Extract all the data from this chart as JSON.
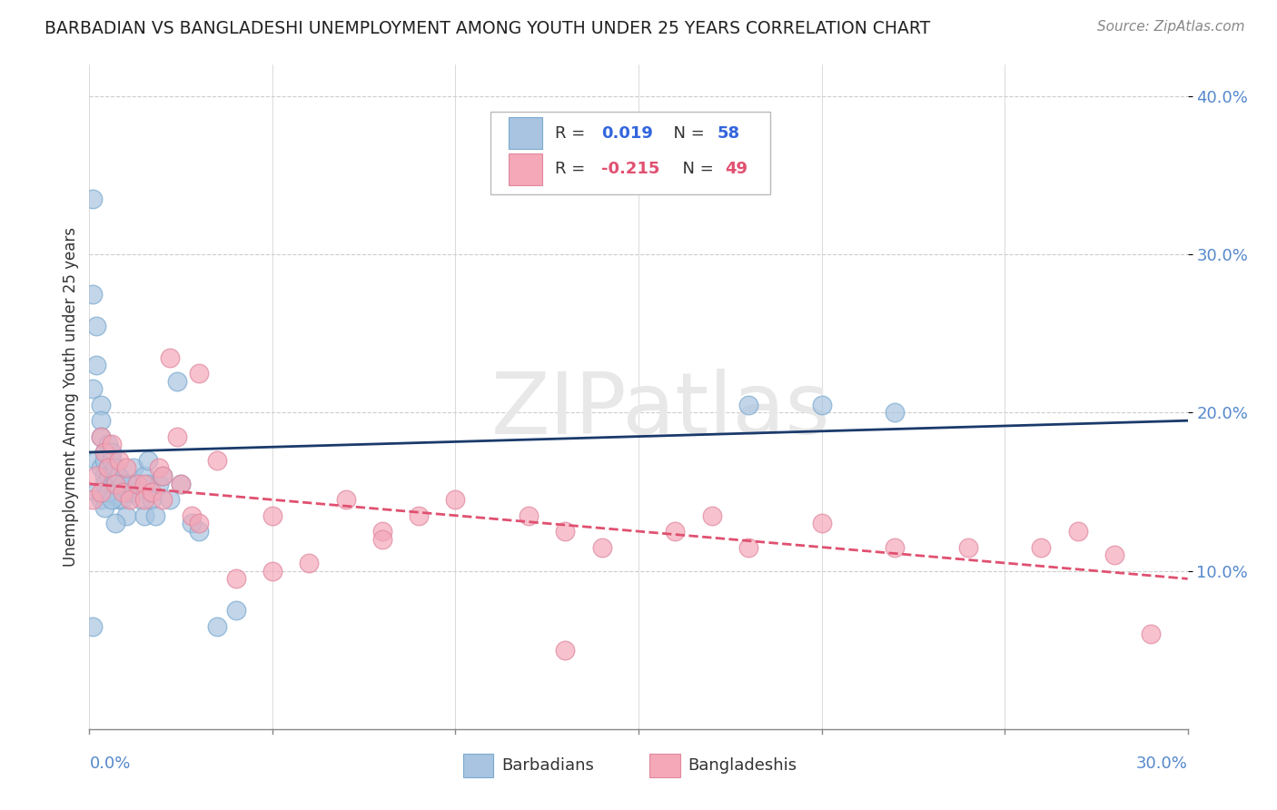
{
  "title": "BARBADIAN VS BANGLADESHI UNEMPLOYMENT AMONG YOUTH UNDER 25 YEARS CORRELATION CHART",
  "source": "Source: ZipAtlas.com",
  "ylabel": "Unemployment Among Youth under 25 years",
  "xlim": [
    0.0,
    0.3
  ],
  "ylim": [
    0.0,
    0.42
  ],
  "barbadian_R": "0.019",
  "barbadian_N": "58",
  "bangladeshi_R": "-0.215",
  "bangladeshi_N": "49",
  "barbadian_color": "#a8c4e0",
  "bangladeshi_color": "#f4a8b8",
  "barbadian_line_color": "#1a3a6b",
  "bangladeshi_line_color": "#e05070",
  "barbadian_line_dash": true,
  "watermark": "ZIPatlas",
  "barbadians_x": [
    0.001,
    0.001,
    0.002,
    0.001,
    0.002,
    0.003,
    0.003,
    0.002,
    0.003,
    0.004,
    0.003,
    0.004,
    0.004,
    0.005,
    0.005,
    0.004,
    0.006,
    0.005,
    0.006,
    0.006,
    0.007,
    0.007,
    0.008,
    0.008,
    0.009,
    0.009,
    0.01,
    0.01,
    0.011,
    0.012,
    0.012,
    0.013,
    0.014,
    0.015,
    0.015,
    0.016,
    0.016,
    0.017,
    0.018,
    0.019,
    0.02,
    0.022,
    0.024,
    0.025,
    0.028,
    0.03,
    0.035,
    0.04,
    0.002,
    0.003,
    0.004,
    0.005,
    0.006,
    0.007,
    0.18,
    0.22,
    0.2,
    0.001
  ],
  "barbadians_y": [
    0.335,
    0.275,
    0.255,
    0.215,
    0.23,
    0.205,
    0.195,
    0.17,
    0.185,
    0.175,
    0.165,
    0.17,
    0.16,
    0.18,
    0.165,
    0.155,
    0.175,
    0.16,
    0.17,
    0.155,
    0.165,
    0.155,
    0.16,
    0.145,
    0.155,
    0.145,
    0.15,
    0.135,
    0.155,
    0.165,
    0.15,
    0.155,
    0.145,
    0.135,
    0.16,
    0.17,
    0.155,
    0.145,
    0.135,
    0.155,
    0.16,
    0.145,
    0.22,
    0.155,
    0.13,
    0.125,
    0.065,
    0.075,
    0.15,
    0.145,
    0.14,
    0.15,
    0.145,
    0.13,
    0.205,
    0.2,
    0.205,
    0.065
  ],
  "bangladeshis_x": [
    0.001,
    0.002,
    0.003,
    0.003,
    0.004,
    0.005,
    0.006,
    0.007,
    0.008,
    0.009,
    0.01,
    0.011,
    0.013,
    0.015,
    0.015,
    0.017,
    0.019,
    0.02,
    0.022,
    0.024,
    0.025,
    0.028,
    0.03,
    0.035,
    0.04,
    0.05,
    0.06,
    0.07,
    0.08,
    0.09,
    0.1,
    0.12,
    0.13,
    0.14,
    0.16,
    0.17,
    0.18,
    0.2,
    0.22,
    0.24,
    0.26,
    0.27,
    0.28,
    0.29,
    0.02,
    0.03,
    0.05,
    0.08,
    0.13
  ],
  "bangladeshis_y": [
    0.145,
    0.16,
    0.185,
    0.15,
    0.175,
    0.165,
    0.18,
    0.155,
    0.17,
    0.15,
    0.165,
    0.145,
    0.155,
    0.155,
    0.145,
    0.15,
    0.165,
    0.145,
    0.235,
    0.185,
    0.155,
    0.135,
    0.225,
    0.17,
    0.095,
    0.135,
    0.105,
    0.145,
    0.125,
    0.135,
    0.145,
    0.135,
    0.125,
    0.115,
    0.125,
    0.135,
    0.115,
    0.13,
    0.115,
    0.115,
    0.115,
    0.125,
    0.11,
    0.06,
    0.16,
    0.13,
    0.1,
    0.12,
    0.05
  ]
}
